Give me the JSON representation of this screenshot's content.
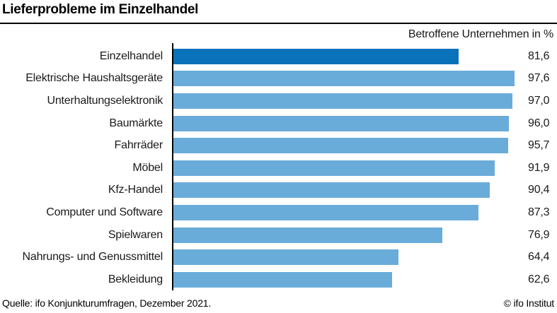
{
  "header": {
    "title": "Lieferprobleme im Einzelhandel",
    "subtitle": "Betroffene Unternehmen in %"
  },
  "chart_data": {
    "type": "bar",
    "orientation": "horizontal",
    "title": "Lieferprobleme im Einzelhandel",
    "xlabel": "Betroffene Unternehmen in %",
    "xlim": [
      0,
      100
    ],
    "grid": false,
    "legend": false,
    "categories": [
      "Einzelhandel",
      "Elektrische Haushaltsgeräte",
      "Unterhaltungselektronik",
      "Baumärkte",
      "Fahrräder",
      "Möbel",
      "Kfz-Handel",
      "Computer und Software",
      "Spielwaren",
      "Nahrungs- und Genussmittel",
      "Bekleidung"
    ],
    "values": [
      81.6,
      97.6,
      97.0,
      96.0,
      95.7,
      91.9,
      90.4,
      87.3,
      76.9,
      64.4,
      62.6
    ],
    "value_labels": [
      "81,6",
      "97,6",
      "97,0",
      "96,0",
      "95,7",
      "91,9",
      "90,4",
      "87,3",
      "76,9",
      "64,4",
      "62,6"
    ],
    "highlight_index": 0,
    "colors": {
      "highlight_bar": "#0a72ba",
      "default_bar": "#6aacd9",
      "axis": "#000000"
    }
  },
  "footer": {
    "source": "Quelle: ifo Konjunkturumfragen, Dezember 2021.",
    "copyright": "© ifo Institut"
  }
}
